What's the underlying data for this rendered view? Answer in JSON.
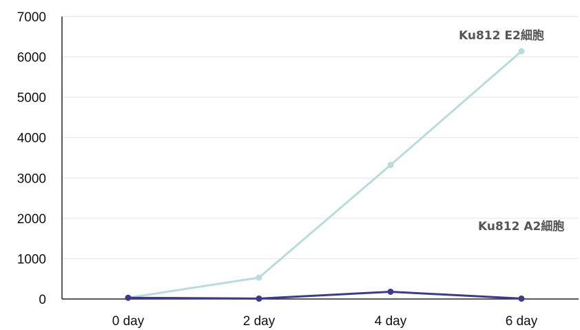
{
  "chart_data": {
    "type": "line",
    "title": "",
    "xlabel": "",
    "ylabel": "",
    "categories": [
      "0 day",
      "2 day",
      "4 day",
      "6 day"
    ],
    "ylim": [
      0,
      7000
    ],
    "yticks": [
      0,
      1000,
      2000,
      3000,
      4000,
      5000,
      6000,
      7000
    ],
    "grid": "horizontal",
    "legend": "none",
    "series": [
      {
        "name": "Ku812 E2細胞",
        "values": [
          30,
          530,
          3320,
          6140
        ],
        "color": "#b8dcd9"
      },
      {
        "name": "Ku812 A2細胞",
        "values": [
          30,
          10,
          180,
          10
        ],
        "color": "#3b3a8c"
      }
    ]
  }
}
